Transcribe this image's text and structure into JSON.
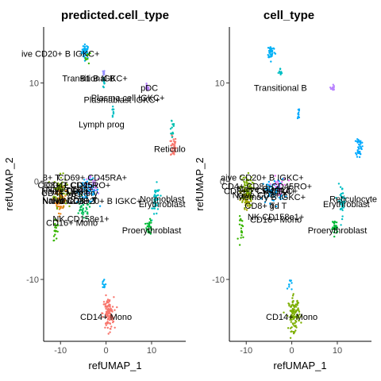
{
  "figure": {
    "panels": [
      {
        "title": "predicted.cell_type",
        "xlabel": "refUMAP_1",
        "ylabel": "refUMAP_2",
        "xticks": [
          -10,
          0,
          10
        ],
        "yticks": [
          -10,
          0,
          10
        ],
        "labels": [
          {
            "text": "ive CD20+ B IGKC+",
            "x": -10.0,
            "y": 13.0
          },
          {
            "text": "Transitional B",
            "x": -3.8,
            "y": 10.5
          },
          {
            "text": "B1 B IGKC+",
            "x": -0.5,
            "y": 10.5
          },
          {
            "text": "pDC",
            "x": 9.5,
            "y": 9.5
          },
          {
            "text": "Plasma cell IGKC+",
            "x": 4.8,
            "y": 8.5
          },
          {
            "text": "Plasmablast IGKC+",
            "x": 3.5,
            "y": 8.3
          },
          {
            "text": "Lymph prog",
            "x": -1.0,
            "y": 5.8
          },
          {
            "text": "Reticulo",
            "x": 14.0,
            "y": 3.3
          },
          {
            "text": "8+ T",
            "x": -12.0,
            "y": 0.4
          },
          {
            "text": "CD69+ CD45RA+",
            "x": -3.0,
            "y": 0.4
          },
          {
            "text": "CD4+ CD25+",
            "x": -7.5,
            "y": -0.4
          },
          {
            "text": "CD8+ T CD45RO+",
            "x": -7.0,
            "y": -0.4
          },
          {
            "text": "Naive CD4+",
            "x": -8.0,
            "y": -0.8
          },
          {
            "text": "Treg",
            "x": -7.0,
            "y": -0.9
          },
          {
            "text": "Naive CD8+",
            "x": -9.0,
            "y": -1.0
          },
          {
            "text": "CD4+ Memory",
            "x": -8.0,
            "y": -1.2
          },
          {
            "text": "IL7R+ T",
            "x": -7.0,
            "y": -1.5
          },
          {
            "text": "Naive CD4+ T",
            "x": -8.0,
            "y": -1.9
          },
          {
            "text": "Naive CD8+ T",
            "x": -8.0,
            "y": -2.0
          },
          {
            "text": "Naive CD20+ B IGKC+",
            "x": -2.0,
            "y": -2.0
          },
          {
            "text": "Normoblast",
            "x": 12.3,
            "y": -1.8
          },
          {
            "text": "Erythroblast",
            "x": 12.3,
            "y": -2.3
          },
          {
            "text": "NK CD158e1+",
            "x": -5.5,
            "y": -3.8
          },
          {
            "text": "CD16+ Mono",
            "x": -7.5,
            "y": -4.2
          },
          {
            "text": "Proerythroblast",
            "x": 10.0,
            "y": -5.0
          },
          {
            "text": "CD14+ Mono",
            "x": 0.0,
            "y": -13.8
          }
        ]
      },
      {
        "title": "cell_type",
        "xlabel": "refUMAP_1",
        "ylabel": "refUMAP_2",
        "xticks": [
          -10,
          0,
          10
        ],
        "yticks": [
          -10,
          0,
          10
        ],
        "labels": [
          {
            "text": "Transitional B",
            "x": -2.5,
            "y": 9.5
          },
          {
            "text": "aive CD20+ B IGKC+",
            "x": -6.5,
            "y": 0.4
          },
          {
            "text": "CD4+ CD8+ CD45RO+",
            "x": -5.5,
            "y": -0.5
          },
          {
            "text": "Naive CD4+ T",
            "x": -6.0,
            "y": -0.8
          },
          {
            "text": "CD8+ T CD45RA+",
            "x": -7.0,
            "y": -1.0
          },
          {
            "text": "B IGKC+",
            "x": -2.5,
            "y": -1.0
          },
          {
            "text": "Naive CD8+ T",
            "x": -7.0,
            "y": -1.4
          },
          {
            "text": "Memory B IGKC+",
            "x": -4.5,
            "y": -1.6
          },
          {
            "text": "Reticulocyte",
            "x": 13.5,
            "y": -1.8
          },
          {
            "text": "Erythroblast",
            "x": 12.0,
            "y": -2.3
          },
          {
            "text": "CD8+ T",
            "x": -7.0,
            "y": -2.5
          },
          {
            "text": "gd T",
            "x": -3.0,
            "y": -2.5
          },
          {
            "text": "NK CD158e1+",
            "x": -3.5,
            "y": -3.6
          },
          {
            "text": "CD16+ Mono",
            "x": -3.5,
            "y": -3.9
          },
          {
            "text": "Proerythroblast",
            "x": 10.0,
            "y": -5.0
          },
          {
            "text": "CD14+ Mono",
            "x": 0.0,
            "y": -13.8
          }
        ]
      }
    ]
  },
  "chart_data": [
    {
      "type": "scatter",
      "title": "predicted.cell_type",
      "xlabel": "refUMAP_1",
      "ylabel": "refUMAP_2",
      "xlim": [
        -13.7,
        17.5
      ],
      "ylim": [
        -16.3,
        15.7
      ],
      "grid": false,
      "clusters": [
        {
          "color": "#00b0f6",
          "center": [
            -4.5,
            13.2
          ],
          "spread": [
            0.7,
            0.6
          ],
          "n": 40
        },
        {
          "color": "#39b600",
          "center": [
            -4.0,
            12.6
          ],
          "spread": [
            0.5,
            0.5
          ],
          "n": 10
        },
        {
          "color": "#9590ff",
          "center": [
            -0.5,
            11.0
          ],
          "spread": [
            0.15,
            0.25
          ],
          "n": 8
        },
        {
          "color": "#00bfc4",
          "center": [
            -0.5,
            10.0
          ],
          "spread": [
            0.2,
            0.5
          ],
          "n": 10
        },
        {
          "color": "#b983ff",
          "center": [
            9.0,
            9.5
          ],
          "spread": [
            0.3,
            0.3
          ],
          "n": 14
        },
        {
          "color": "#00bfc4",
          "center": [
            1.5,
            7.0
          ],
          "spread": [
            0.2,
            0.6
          ],
          "n": 10
        },
        {
          "color": "#f8766d",
          "center": [
            14.8,
            3.5
          ],
          "spread": [
            0.5,
            0.9
          ],
          "n": 40
        },
        {
          "color": "#00c0af",
          "center": [
            14.5,
            5.5
          ],
          "spread": [
            0.5,
            1.0
          ],
          "n": 15
        },
        {
          "color": "#7cae00",
          "center": [
            -10.0,
            -1.0
          ],
          "spread": [
            1.2,
            1.3
          ],
          "n": 90
        },
        {
          "color": "#e7861b",
          "center": [
            -10.0,
            -2.0
          ],
          "spread": [
            1.0,
            1.0
          ],
          "n": 50
        },
        {
          "color": "#00a9ff",
          "center": [
            -4.0,
            -1.0
          ],
          "spread": [
            2.0,
            1.0
          ],
          "n": 80
        },
        {
          "color": "#00bc59",
          "center": [
            -5.0,
            -3.0
          ],
          "spread": [
            1.5,
            0.8
          ],
          "n": 30
        },
        {
          "color": "#c77cff",
          "center": [
            -3.0,
            -0.5
          ],
          "spread": [
            1.5,
            0.8
          ],
          "n": 25
        },
        {
          "color": "#00bfc4",
          "center": [
            11.0,
            -2.0
          ],
          "spread": [
            0.7,
            1.3
          ],
          "n": 40
        },
        {
          "color": "#00ba38",
          "center": [
            9.5,
            -4.7
          ],
          "spread": [
            0.5,
            0.6
          ],
          "n": 30
        },
        {
          "color": "#39b600",
          "center": [
            -11.0,
            -4.8
          ],
          "spread": [
            0.5,
            1.0
          ],
          "n": 20
        },
        {
          "color": "#f8766d",
          "center": [
            0.5,
            -13.5
          ],
          "spread": [
            1.0,
            1.4
          ],
          "n": 110
        },
        {
          "color": "#00b0f6",
          "center": [
            -0.5,
            -10.5
          ],
          "spread": [
            0.4,
            0.6
          ],
          "n": 10
        }
      ]
    },
    {
      "type": "scatter",
      "title": "cell_type",
      "xlabel": "refUMAP_1",
      "ylabel": "refUMAP_2",
      "xlim": [
        -13.7,
        17.5
      ],
      "ylim": [
        -16.3,
        15.7
      ],
      "grid": false,
      "clusters": [
        {
          "color": "#00b0f6",
          "center": [
            -4.5,
            13.2
          ],
          "spread": [
            0.7,
            0.6
          ],
          "n": 40
        },
        {
          "color": "#00bfc4",
          "center": [
            -2.5,
            11.0
          ],
          "spread": [
            0.4,
            0.4
          ],
          "n": 10
        },
        {
          "color": "#b983ff",
          "center": [
            9.0,
            9.5
          ],
          "spread": [
            0.3,
            0.3
          ],
          "n": 14
        },
        {
          "color": "#00a9ff",
          "center": [
            1.5,
            7.0
          ],
          "spread": [
            0.2,
            0.6
          ],
          "n": 10
        },
        {
          "color": "#00a9ff",
          "center": [
            14.8,
            3.5
          ],
          "spread": [
            0.5,
            0.9
          ],
          "n": 40
        },
        {
          "color": "#7cae00",
          "center": [
            -10.0,
            -1.0
          ],
          "spread": [
            1.2,
            1.3
          ],
          "n": 90
        },
        {
          "color": "#a3a500",
          "center": [
            -10.0,
            -2.0
          ],
          "spread": [
            1.0,
            1.0
          ],
          "n": 40
        },
        {
          "color": "#00a9ff",
          "center": [
            -4.0,
            -1.0
          ],
          "spread": [
            2.0,
            1.0
          ],
          "n": 80
        },
        {
          "color": "#e76bf3",
          "center": [
            -3.0,
            -0.5
          ],
          "spread": [
            1.5,
            0.8
          ],
          "n": 25
        },
        {
          "color": "#00bfc4",
          "center": [
            11.0,
            -2.0
          ],
          "spread": [
            0.7,
            1.3
          ],
          "n": 40
        },
        {
          "color": "#00ba38",
          "center": [
            9.5,
            -4.7
          ],
          "spread": [
            0.5,
            0.6
          ],
          "n": 30
        },
        {
          "color": "#39b600",
          "center": [
            -11.0,
            -4.8
          ],
          "spread": [
            0.5,
            1.0
          ],
          "n": 20
        },
        {
          "color": "#7cae00",
          "center": [
            0.5,
            -13.5
          ],
          "spread": [
            1.0,
            1.4
          ],
          "n": 110
        },
        {
          "color": "#00b0f6",
          "center": [
            -0.5,
            -10.5
          ],
          "spread": [
            0.4,
            0.6
          ],
          "n": 10
        }
      ]
    }
  ]
}
